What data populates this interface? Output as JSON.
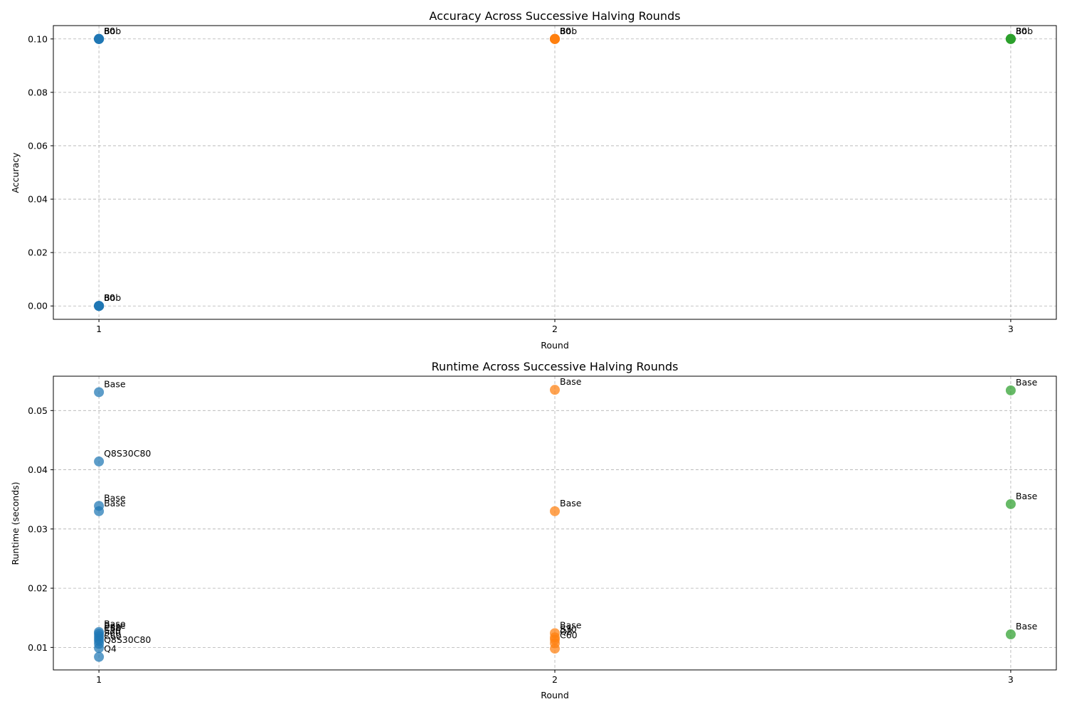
{
  "colors": {
    "round1": "#1f77b4",
    "round2": "#ff7f0e",
    "round3": "#2ca02c",
    "grid": "#b0b0b0"
  },
  "chart_data": [
    {
      "type": "scatter",
      "title": "Accuracy Across Successive Halving Rounds",
      "xlabel": "Round",
      "ylabel": "Accuracy",
      "xlim": [
        0.9,
        3.1
      ],
      "ylim": [
        -0.005,
        0.105
      ],
      "xticks": [
        1,
        2,
        3
      ],
      "yticks": [
        0.0,
        0.02,
        0.04,
        0.06,
        0.08,
        0.1
      ],
      "ytick_labels": [
        "0.00",
        "0.02",
        "0.04",
        "0.06",
        "0.08",
        "0.10"
      ],
      "grid": true,
      "points": [
        {
          "x": 1,
          "y": 0.1,
          "label": "80",
          "round": 1
        },
        {
          "x": 1,
          "y": 0.1,
          "label": "Bob",
          "round": 1
        },
        {
          "x": 1,
          "y": 0.1,
          "label": "30",
          "round": 1
        },
        {
          "x": 1,
          "y": 0.1,
          "label": "60",
          "round": 1
        },
        {
          "x": 1,
          "y": 0.0,
          "label": "80",
          "round": 1
        },
        {
          "x": 1,
          "y": 0.0,
          "label": "Bob",
          "round": 1
        },
        {
          "x": 1,
          "y": 0.0,
          "label": "30",
          "round": 1
        },
        {
          "x": 1,
          "y": 0.0,
          "label": "60",
          "round": 1
        },
        {
          "x": 2,
          "y": 0.1,
          "label": "80",
          "round": 2
        },
        {
          "x": 2,
          "y": 0.1,
          "label": "Bob",
          "round": 2
        },
        {
          "x": 2,
          "y": 0.1,
          "label": "30",
          "round": 2
        },
        {
          "x": 2,
          "y": 0.1,
          "label": "60",
          "round": 2
        },
        {
          "x": 3,
          "y": 0.1,
          "label": "30",
          "round": 3
        },
        {
          "x": 3,
          "y": 0.1,
          "label": "Bob",
          "round": 3
        },
        {
          "x": 3,
          "y": 0.1,
          "label": "80",
          "round": 3
        }
      ]
    },
    {
      "type": "scatter",
      "title": "Runtime Across Successive Halving Rounds",
      "xlabel": "Round",
      "ylabel": "Runtime (seconds)",
      "xlim": [
        0.9,
        3.1
      ],
      "ylim": [
        0.0062,
        0.0558
      ],
      "xticks": [
        1,
        2,
        3
      ],
      "yticks": [
        0.01,
        0.02,
        0.03,
        0.04,
        0.05
      ],
      "ytick_labels": [
        "0.01",
        "0.02",
        "0.03",
        "0.04",
        "0.05"
      ],
      "grid": true,
      "points": [
        {
          "x": 1,
          "y": 0.0531,
          "label": "Base",
          "round": 1
        },
        {
          "x": 1,
          "y": 0.0414,
          "label": "Q8S30C80",
          "round": 1
        },
        {
          "x": 1,
          "y": 0.0339,
          "label": "Base",
          "round": 1
        },
        {
          "x": 1,
          "y": 0.033,
          "label": "Base",
          "round": 1
        },
        {
          "x": 1,
          "y": 0.0126,
          "label": "Base",
          "round": 1
        },
        {
          "x": 1,
          "y": 0.0123,
          "label": "Base",
          "round": 1
        },
        {
          "x": 1,
          "y": 0.0119,
          "label": "C80",
          "round": 1
        },
        {
          "x": 1,
          "y": 0.0115,
          "label": "S30",
          "round": 1
        },
        {
          "x": 1,
          "y": 0.0111,
          "label": "S60",
          "round": 1
        },
        {
          "x": 1,
          "y": 0.0106,
          "label": "C60",
          "round": 1
        },
        {
          "x": 1,
          "y": 0.0099,
          "label": "Q8S30C80",
          "round": 1
        },
        {
          "x": 1,
          "y": 0.0084,
          "label": "Q4",
          "round": 1
        },
        {
          "x": 2,
          "y": 0.0535,
          "label": "Base",
          "round": 2
        },
        {
          "x": 2,
          "y": 0.033,
          "label": "Base",
          "round": 2
        },
        {
          "x": 2,
          "y": 0.0124,
          "label": "Base",
          "round": 2
        },
        {
          "x": 2,
          "y": 0.0117,
          "label": "S30",
          "round": 2
        },
        {
          "x": 2,
          "y": 0.0113,
          "label": "Q8",
          "round": 2
        },
        {
          "x": 2,
          "y": 0.0107,
          "label": "C60",
          "round": 2
        },
        {
          "x": 2,
          "y": 0.0098,
          "label": "",
          "round": 2
        },
        {
          "x": 3,
          "y": 0.0534,
          "label": "Base",
          "round": 3
        },
        {
          "x": 3,
          "y": 0.0342,
          "label": "Base",
          "round": 3
        },
        {
          "x": 3,
          "y": 0.0122,
          "label": "Base",
          "round": 3
        }
      ]
    }
  ]
}
